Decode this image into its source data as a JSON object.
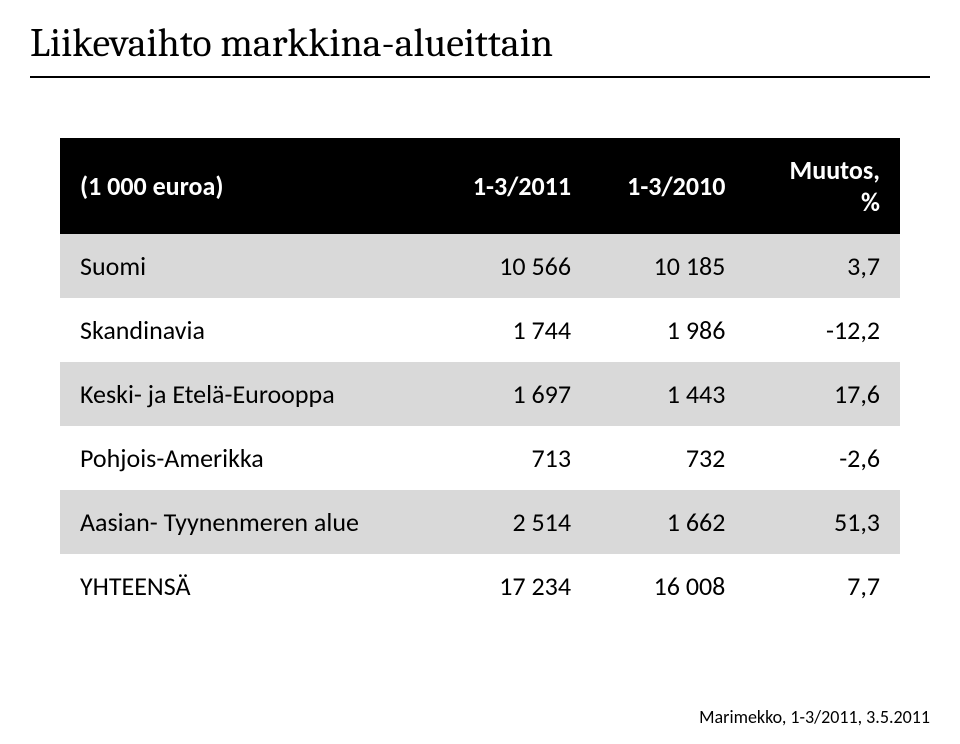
{
  "title": "Liikevaihto markkina-alueittain",
  "table": {
    "columns": [
      "(1 000 euroa)",
      "1-3/2011",
      "1-3/2010",
      "Muutos, %"
    ],
    "column_alignment": [
      "left",
      "right",
      "right",
      "right"
    ],
    "header_bg": "#000000",
    "header_fg": "#ffffff",
    "row_odd_bg": "#d9d9d9",
    "row_even_bg": "#ffffff",
    "font_family": "Calibri",
    "font_size": 26,
    "rows": [
      [
        "Suomi",
        "10 566",
        "10 185",
        "3,7"
      ],
      [
        "Skandinavia",
        "1 744",
        "1 986",
        "-12,2"
      ],
      [
        "Keski- ja Etelä-Eurooppa",
        "1 697",
        "1 443",
        "17,6"
      ],
      [
        "Pohjois-Amerikka",
        "713",
        "732",
        "-2,6"
      ],
      [
        "Aasian- Tyynenmeren alue",
        "2 514",
        "1 662",
        "51,3"
      ],
      [
        "YHTEENSÄ",
        "17 234",
        "16 008",
        "7,7"
      ]
    ]
  },
  "footer": "Marimekko, 1-3/2011, 3.5.2011",
  "background_color": "#ffffff",
  "title_font": "Cambria",
  "title_fontsize": 40
}
